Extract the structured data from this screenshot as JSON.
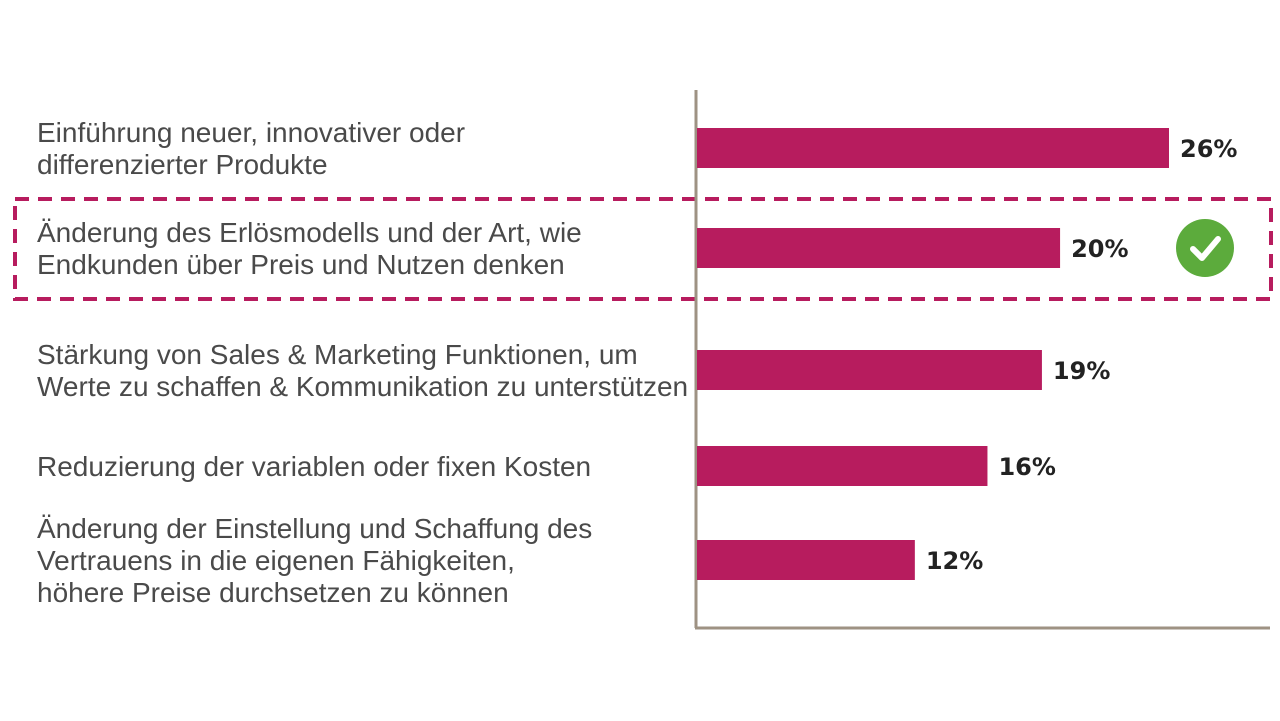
{
  "chart_data": {
    "type": "bar",
    "orientation": "horizontal",
    "title": "",
    "xlabel": "",
    "ylabel": "",
    "xlim": [
      0,
      26
    ],
    "grid": false,
    "legend": "none",
    "categories": [
      [
        "Einführung neuer, innovativer oder",
        "differenzierter Produkte"
      ],
      [
        "Änderung des Erlösmodells und der Art, wie",
        "Endkunden über Preis und Nutzen denken"
      ],
      [
        "Stärkung von Sales & Marketing Funktionen, um",
        "Werte zu schaffen & Kommunikation zu unterstützen"
      ],
      [
        "Reduzierung der variablen oder fixen Kosten"
      ],
      [
        "Änderung der Einstellung und Schaffung des",
        "Vertrauens in die eigenen Fähigkeiten,",
        "höhere Preise durchsetzen zu können"
      ]
    ],
    "values": [
      26,
      20,
      19,
      16,
      12
    ],
    "value_labels": [
      "26%",
      "20%",
      "19%",
      "16%",
      "12%"
    ],
    "highlighted_index": 1,
    "highlight_marker": "check-icon",
    "colors": {
      "bar": "#b71c5e",
      "axis": "#9e9283",
      "highlight_border": "#b71c5e",
      "check": "#5cab3c",
      "label_text": "#4a4a4a",
      "value_text": "#222222"
    }
  }
}
